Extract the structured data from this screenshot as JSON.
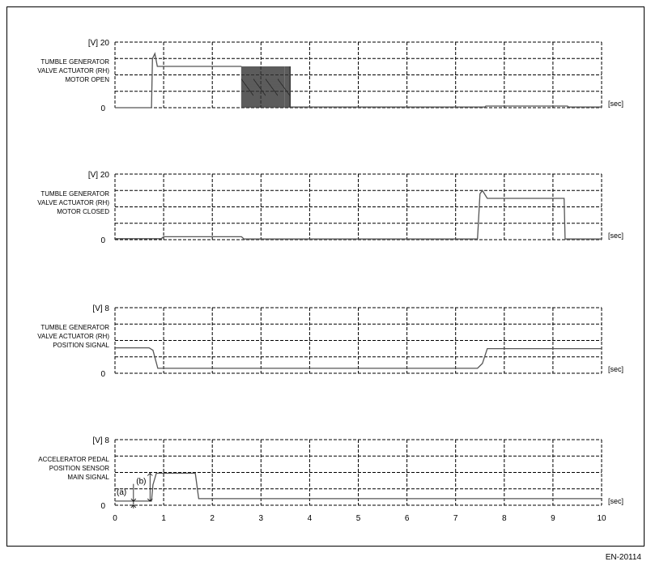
{
  "figure_code": "EN-20114",
  "chart_data": [
    {
      "type": "line",
      "label": [
        "TUMBLE GENERATOR",
        "VALVE ACTUATOR (RH)",
        "MOTOR OPEN"
      ],
      "y_unit": "[V]",
      "ylim": [
        0,
        20
      ],
      "y_tick_labels": [
        "0",
        "20"
      ],
      "y_grid_step": 5,
      "x_unit": "[sec]",
      "xlim": [
        0,
        10
      ],
      "grid": true,
      "trace_color": "#555555",
      "points": [
        [
          0,
          0
        ],
        [
          0.75,
          0
        ],
        [
          0.77,
          15
        ],
        [
          0.82,
          16.5
        ],
        [
          0.87,
          12.6
        ],
        [
          2.6,
          12.6
        ],
        [
          3.6,
          12.6
        ],
        [
          3.6,
          0.2
        ],
        [
          7.6,
          0.2
        ],
        [
          7.62,
          0.5
        ],
        [
          9.3,
          0.5
        ],
        [
          9.32,
          0.2
        ],
        [
          10,
          0.2
        ]
      ],
      "pwm": {
        "start": 2.6,
        "end": 3.6,
        "low": 0,
        "high": 12.6
      }
    },
    {
      "type": "line",
      "label": [
        "TUMBLE GENERATOR",
        "VALVE ACTUATOR (RH)",
        "MOTOR CLOSED"
      ],
      "y_unit": "[V]",
      "ylim": [
        0,
        20
      ],
      "y_tick_labels": [
        "0",
        "20"
      ],
      "y_grid_step": 5,
      "x_unit": "[sec]",
      "xlim": [
        0,
        10
      ],
      "grid": true,
      "trace_color": "#555555",
      "points": [
        [
          0,
          0.3
        ],
        [
          0.95,
          0.3
        ],
        [
          1.0,
          0.9
        ],
        [
          2.6,
          0.9
        ],
        [
          2.65,
          0.2
        ],
        [
          7.45,
          0.2
        ],
        [
          7.5,
          14
        ],
        [
          7.55,
          15
        ],
        [
          7.65,
          12.6
        ],
        [
          9.23,
          12.6
        ],
        [
          9.25,
          0.2
        ],
        [
          10,
          0.2
        ]
      ]
    },
    {
      "type": "line",
      "label": [
        "TUMBLE GENERATOR",
        "VALVE ACTUATOR (RH)",
        "POSITION SIGNAL"
      ],
      "y_unit": "[V]",
      "ylim": [
        0,
        8
      ],
      "y_tick_labels": [
        "0",
        "8"
      ],
      "y_grid_step": 2,
      "x_unit": "[sec]",
      "xlim": [
        0,
        10
      ],
      "grid": true,
      "trace_color": "#555555",
      "points": [
        [
          0,
          3.1
        ],
        [
          0.7,
          3.1
        ],
        [
          0.78,
          2.8
        ],
        [
          0.88,
          0.6
        ],
        [
          7.45,
          0.6
        ],
        [
          7.55,
          1.2
        ],
        [
          7.65,
          3.0
        ],
        [
          10,
          3.0
        ]
      ]
    },
    {
      "type": "line",
      "label": [
        "ACCELERATOR PEDAL",
        "POSITION SENSOR",
        "MAIN SIGNAL"
      ],
      "y_unit": "[V]",
      "ylim": [
        0,
        8
      ],
      "y_tick_labels": [
        "0",
        "8"
      ],
      "y_grid_step": 2,
      "x_unit": "[sec]",
      "xlim": [
        0,
        10
      ],
      "grid": true,
      "x_tick_labels": [
        "0",
        "1",
        "2",
        "3",
        "4",
        "5",
        "6",
        "7",
        "8",
        "9",
        "10"
      ],
      "trace_color": "#555555",
      "points": [
        [
          0,
          0.5
        ],
        [
          0.75,
          0.5
        ],
        [
          0.78,
          2.5
        ],
        [
          0.85,
          3.9
        ],
        [
          1.65,
          3.9
        ],
        [
          1.72,
          0.8
        ],
        [
          10,
          0.8
        ]
      ],
      "annotations": [
        "(a)",
        "(b)"
      ]
    }
  ]
}
